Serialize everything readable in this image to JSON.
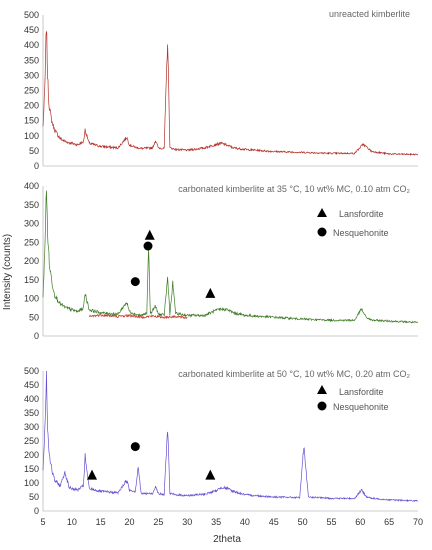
{
  "figure": {
    "ylabel": "Intensity (counts)",
    "xlabel": "2theta",
    "marker_legend": [
      {
        "symbol": "triangle",
        "label": "Lansfordite"
      },
      {
        "symbol": "circle",
        "label": "Nesquehonite"
      }
    ]
  },
  "colors": {
    "unreacted": "#b0302a",
    "carb35_green": "#3e7a26",
    "carb35_red": "#c0392b",
    "carb50": "#6a4fd1",
    "axis_text": "#333333",
    "title_text": "#666666"
  },
  "chart_data": [
    {
      "type": "line",
      "title": "unreacted kimberlite",
      "ylim": [
        0,
        500
      ],
      "yticks": [
        0,
        50,
        100,
        150,
        200,
        250,
        300,
        350,
        400,
        450,
        500
      ],
      "xlim": [
        5,
        70
      ],
      "series": [
        {
          "color": "#b0302a",
          "x": [
            5,
            5.3,
            5.6,
            5.8,
            6.0,
            6.5,
            7,
            8,
            9,
            10,
            11,
            12,
            12.3,
            13,
            15,
            18,
            19.5,
            20,
            21,
            22,
            24,
            24.5,
            25,
            26,
            26.6,
            27,
            28,
            30,
            33,
            35,
            36,
            37,
            38,
            40,
            45,
            50,
            55,
            59,
            60.5,
            62,
            65,
            70
          ],
          "y": [
            130,
            250,
            470,
            300,
            210,
            150,
            120,
            90,
            80,
            75,
            70,
            80,
            120,
            75,
            65,
            60,
            95,
            70,
            62,
            58,
            60,
            85,
            60,
            58,
            420,
            60,
            55,
            52,
            60,
            72,
            75,
            68,
            60,
            55,
            48,
            45,
            42,
            42,
            72,
            48,
            40,
            38
          ]
        }
      ]
    },
    {
      "type": "line",
      "title": "carbonated kimberlite at 35 °C, 10 wt% MC, 0.10 atm CO₂",
      "ylim": [
        0,
        400
      ],
      "yticks": [
        0,
        50,
        100,
        150,
        200,
        250,
        300,
        350,
        400
      ],
      "xlim": [
        5,
        70
      ],
      "annotations": [
        {
          "symbol": "triangle",
          "x": 23.5,
          "y": 270
        },
        {
          "symbol": "circle",
          "x": 23.2,
          "y": 240
        },
        {
          "symbol": "circle",
          "x": 21.0,
          "y": 145
        },
        {
          "symbol": "triangle",
          "x": 34.0,
          "y": 115
        }
      ],
      "series": [
        {
          "color": "#3e7a26",
          "x": [
            5,
            5.3,
            5.6,
            5.8,
            6.1,
            6.6,
            7,
            8,
            9,
            10,
            11,
            12,
            12.3,
            13,
            15,
            18,
            19.5,
            20,
            21,
            22,
            23,
            23.3,
            23.6,
            24.5,
            25,
            26,
            26.6,
            27,
            27.5,
            28,
            30,
            33,
            35,
            36,
            37,
            38,
            40,
            45,
            50,
            55,
            59,
            60.2,
            61,
            62,
            65,
            70
          ],
          "y": [
            100,
            230,
            390,
            280,
            190,
            140,
            110,
            85,
            75,
            70,
            65,
            75,
            115,
            70,
            62,
            58,
            90,
            65,
            58,
            55,
            60,
            240,
            60,
            80,
            58,
            56,
            155,
            58,
            140,
            60,
            55,
            55,
            68,
            72,
            70,
            62,
            55,
            50,
            45,
            42,
            42,
            72,
            50,
            42,
            40,
            36
          ]
        },
        {
          "color": "#c0392b",
          "x": [
            13,
            15,
            18,
            20,
            22,
            24,
            26,
            28,
            30
          ],
          "y": [
            52,
            56,
            52,
            55,
            50,
            53,
            50,
            52,
            48
          ]
        }
      ]
    },
    {
      "type": "line",
      "title": "carbonated kimberlite at 50 °C, 10 wt% MC, 0.20 atm CO₂",
      "ylim": [
        0,
        500
      ],
      "yticks": [
        0,
        50,
        100,
        150,
        200,
        250,
        300,
        350,
        400,
        450,
        500
      ],
      "xlim": [
        5,
        70
      ],
      "xticks": [
        5,
        10,
        15,
        20,
        25,
        30,
        35,
        40,
        45,
        50,
        55,
        60,
        65,
        70
      ],
      "annotations": [
        {
          "symbol": "circle",
          "x": 21.0,
          "y": 230
        },
        {
          "symbol": "triangle",
          "x": 13.5,
          "y": 130
        },
        {
          "symbol": "triangle",
          "x": 34.0,
          "y": 130
        }
      ],
      "series": [
        {
          "color": "#6a4fd1",
          "x": [
            5,
            5.3,
            5.6,
            5.8,
            6.1,
            6.6,
            7,
            8,
            8.8,
            9.5,
            10,
            11,
            12,
            12.3,
            13,
            15,
            18,
            19.5,
            20,
            21,
            21.5,
            22,
            24,
            24.5,
            25,
            26,
            26.6,
            27,
            28,
            30,
            33,
            35,
            36,
            37,
            38,
            40,
            45,
            49.5,
            50.2,
            51,
            55,
            59,
            60.2,
            61,
            62,
            65,
            70
          ],
          "y": [
            150,
            280,
            490,
            300,
            200,
            140,
            110,
            90,
            140,
            85,
            80,
            75,
            90,
            195,
            80,
            70,
            65,
            110,
            75,
            70,
            160,
            62,
            62,
            90,
            62,
            58,
            300,
            62,
            58,
            55,
            60,
            72,
            85,
            80,
            70,
            58,
            50,
            48,
            230,
            50,
            45,
            45,
            75,
            52,
            45,
            40,
            36
          ]
        }
      ]
    }
  ]
}
